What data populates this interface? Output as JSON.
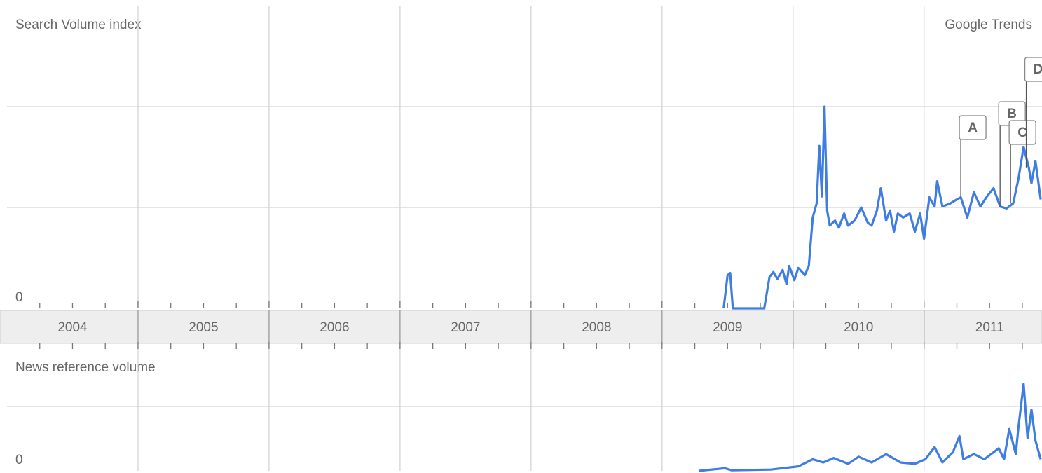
{
  "chart_data": [
    {
      "type": "line",
      "title": "Search Volume index",
      "source": "Google Trends",
      "color": "#3f7de3",
      "xlim": [
        2004,
        2011.9
      ],
      "xticks": [
        2004,
        2005,
        2006,
        2007,
        2008,
        2009,
        2010,
        2011
      ],
      "ylim": [
        0,
        3
      ],
      "yticks": [
        0
      ],
      "ygrid": [
        1,
        2
      ],
      "x": [
        2009.47,
        2009.5,
        2009.52,
        2009.54,
        2009.78,
        2009.82,
        2009.85,
        2009.88,
        2009.92,
        2009.95,
        2009.97,
        2010.01,
        2010.04,
        2010.09,
        2010.12,
        2010.15,
        2010.18,
        2010.2,
        2010.22,
        2010.24,
        2010.26,
        2010.28,
        2010.32,
        2010.35,
        2010.39,
        2010.42,
        2010.47,
        2010.52,
        2010.57,
        2010.6,
        2010.64,
        2010.67,
        2010.71,
        2010.74,
        2010.77,
        2010.8,
        2010.84,
        2010.89,
        2010.93,
        2010.97,
        2011.0,
        2011.04,
        2011.08,
        2011.1,
        2011.14,
        2011.2,
        2011.25,
        2011.28,
        2011.33,
        2011.38,
        2011.43,
        2011.48,
        2011.53,
        2011.58,
        2011.63,
        2011.68,
        2011.72,
        2011.76,
        2011.8,
        2011.82,
        2011.85,
        2011.89
      ],
      "values": [
        0,
        0.33,
        0.35,
        0,
        0,
        0.31,
        0.36,
        0.29,
        0.38,
        0.24,
        0.42,
        0.28,
        0.4,
        0.33,
        0.42,
        0.9,
        1.04,
        1.61,
        1.11,
        2.0,
        0.97,
        0.82,
        0.87,
        0.8,
        0.94,
        0.82,
        0.87,
        1.0,
        0.85,
        0.82,
        0.97,
        1.19,
        0.87,
        0.97,
        0.76,
        0.94,
        0.9,
        0.94,
        0.76,
        0.94,
        0.69,
        1.1,
        1.01,
        1.26,
        1.01,
        1.04,
        1.08,
        1.1,
        0.9,
        1.15,
        1.01,
        1.11,
        1.19,
        1.01,
        0.99,
        1.04,
        1.28,
        1.6,
        1.39,
        1.24,
        1.46,
        1.08
      ],
      "annotations": [
        {
          "label": "A",
          "x": 2011.28
        },
        {
          "label": "B",
          "x": 2011.58
        },
        {
          "label": "C",
          "x": 2011.66
        },
        {
          "label": "D",
          "x": 2011.78
        }
      ]
    },
    {
      "type": "line",
      "title": "News reference volume",
      "color": "#3f7de3",
      "xlim": [
        2004,
        2011.9
      ],
      "xticks": [
        2004,
        2005,
        2006,
        2007,
        2008,
        2009,
        2010,
        2011
      ],
      "ylim": [
        0,
        2
      ],
      "yticks": [
        0
      ],
      "ygrid": [
        1
      ],
      "x": [
        2009.28,
        2009.48,
        2009.53,
        2009.83,
        2010.04,
        2010.15,
        2010.23,
        2010.31,
        2010.42,
        2010.5,
        2010.6,
        2010.71,
        2010.82,
        2010.93,
        2011.01,
        2011.08,
        2011.14,
        2011.22,
        2011.27,
        2011.3,
        2011.38,
        2011.46,
        2011.57,
        2011.61,
        2011.65,
        2011.7,
        2011.72,
        2011.76,
        2011.79,
        2011.82,
        2011.85,
        2011.89
      ],
      "values": [
        0,
        0.04,
        0.01,
        0.02,
        0.07,
        0.18,
        0.13,
        0.2,
        0.11,
        0.22,
        0.13,
        0.26,
        0.13,
        0.11,
        0.18,
        0.37,
        0.13,
        0.29,
        0.54,
        0.18,
        0.26,
        0.18,
        0.35,
        0.18,
        0.65,
        0.26,
        0.67,
        1.35,
        0.51,
        0.95,
        0.47,
        0.18
      ]
    }
  ]
}
